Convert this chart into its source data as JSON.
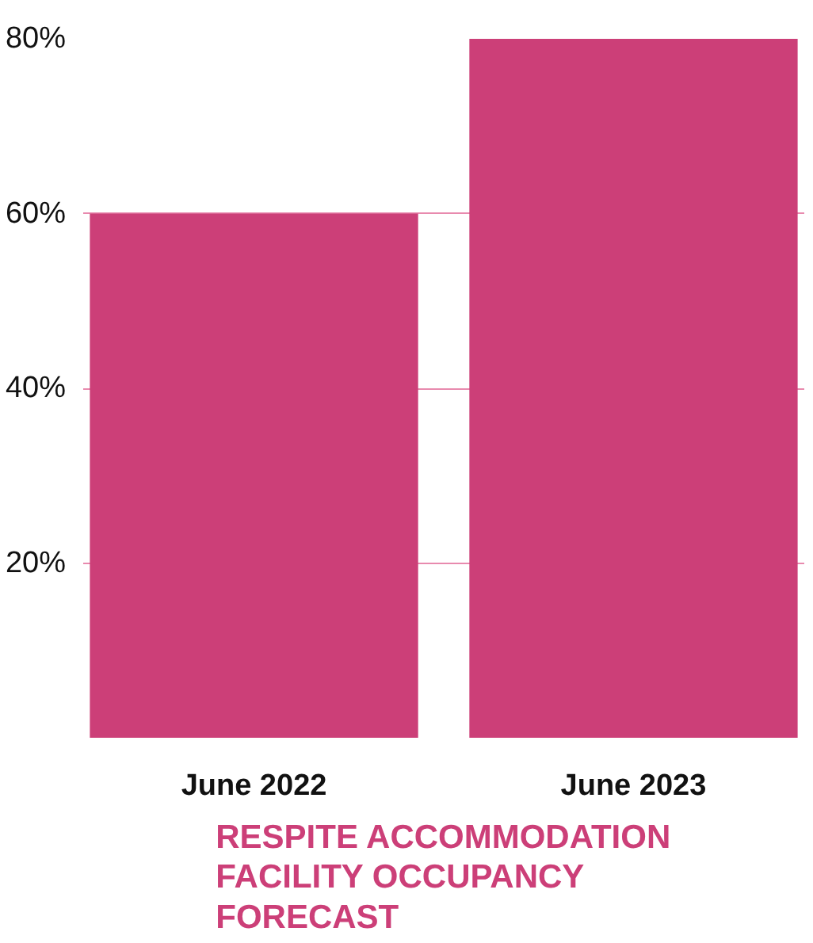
{
  "chart_data": {
    "type": "bar",
    "title": "RESPITE ACCOMMODATION FACILITY OCCUPANCY FORECAST",
    "categories": [
      "June 2022",
      "June 2023"
    ],
    "values": [
      60,
      80
    ],
    "color": "#cc3f78",
    "ylim": [
      0,
      80
    ],
    "yticks": [
      {
        "value": 20,
        "label": "20%"
      },
      {
        "value": 40,
        "label": "40%"
      },
      {
        "value": 60,
        "label": "60%"
      },
      {
        "value": 80,
        "label": "80%"
      }
    ],
    "grid": "y"
  }
}
